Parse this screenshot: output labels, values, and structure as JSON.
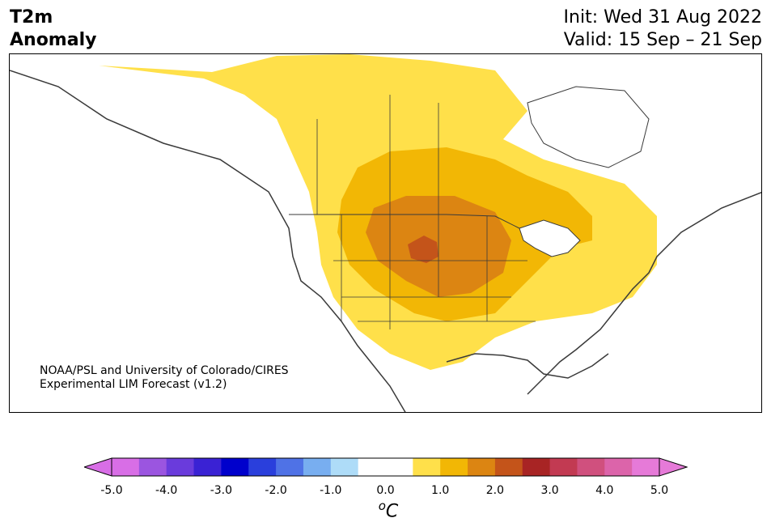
{
  "header": {
    "title_line1": "T2m",
    "title_line2": "Anomaly",
    "init": "Init: Wed 31 Aug 2022",
    "valid": "Valid: 15 Sep – 21 Sep"
  },
  "credit": {
    "line1": "NOAA/PSL and University of Colorado/CIRES",
    "line2": "Experimental LIM Forecast (v1.2)"
  },
  "colorbar": {
    "ticks": [
      "-5.0",
      "-4.0",
      "-3.0",
      "-2.0",
      "-1.0",
      "0.0",
      "1.0",
      "2.0",
      "3.0",
      "4.0",
      "5.0"
    ],
    "unit_base": "C",
    "unit_sup": "o",
    "colors": {
      "under": "#d86ee6",
      "over": "#e67ad8",
      "bins": [
        "#d86ee6",
        "#9b55e0",
        "#6a3bdc",
        "#3a22d4",
        "#0000cc",
        "#2a3fdc",
        "#4f72e6",
        "#78aef0",
        "#aedcf8",
        "#ffffff",
        "#ffffff",
        "#ffe04a",
        "#f2b705",
        "#dc8512",
        "#c4541a",
        "#a82424",
        "#c23a52",
        "#d0507e",
        "#dc64aa",
        "#e67ad8"
      ]
    }
  },
  "map": {
    "colors": {
      "anomaly_0_5_1": "#ffe04a",
      "anomaly_1_1_5": "#f2b705",
      "anomaly_1_5_2": "#dc8512",
      "anomaly_2_2_5": "#c4541a",
      "coast": "#3a3a3a",
      "borders": "#3a3a3a"
    }
  }
}
